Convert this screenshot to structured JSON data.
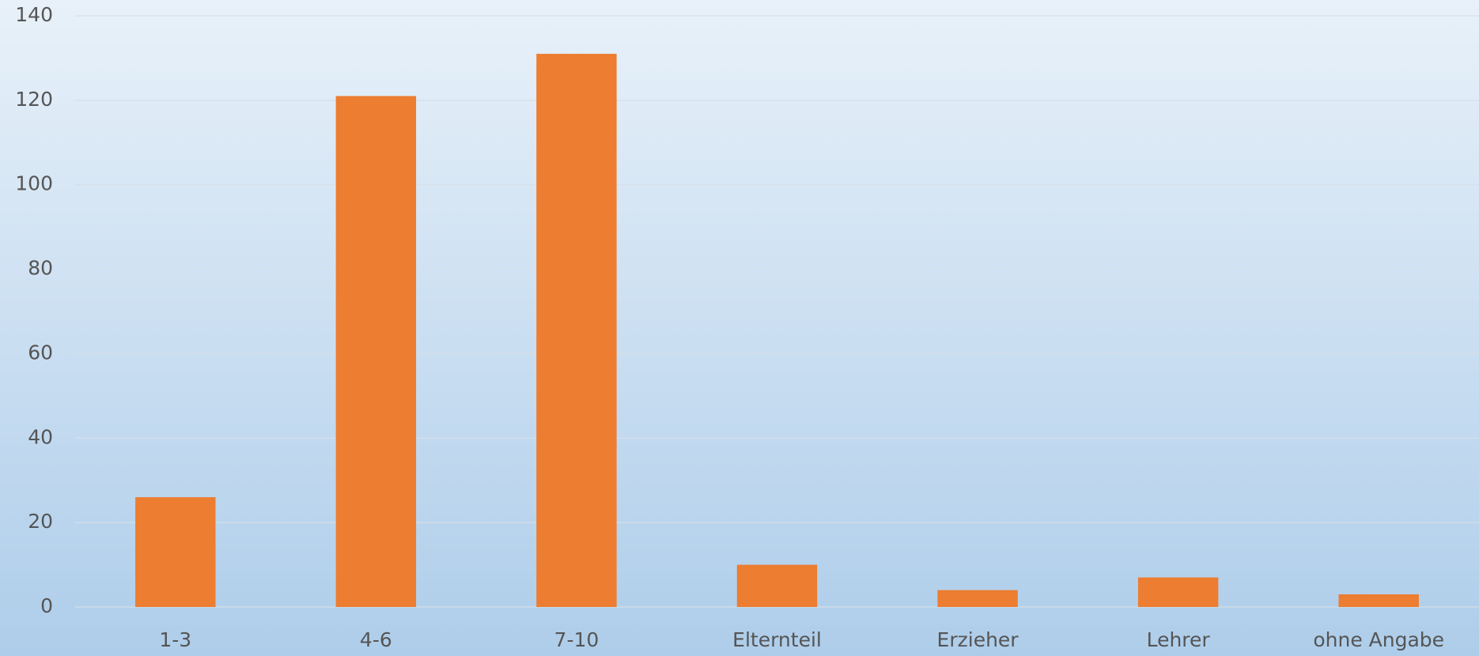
{
  "chart_data": {
    "type": "bar",
    "categories": [
      "1-3",
      "4-6",
      "7-10",
      "Elternteil",
      "Erzieher",
      "Lehrer",
      "ohne Angabe"
    ],
    "values": [
      26,
      121,
      131,
      10,
      4,
      7,
      3
    ],
    "color": "#ed7d31",
    "ylim": [
      0,
      140
    ],
    "yticks": [
      0,
      20,
      40,
      60,
      80,
      100,
      120,
      140
    ],
    "grid": true
  }
}
